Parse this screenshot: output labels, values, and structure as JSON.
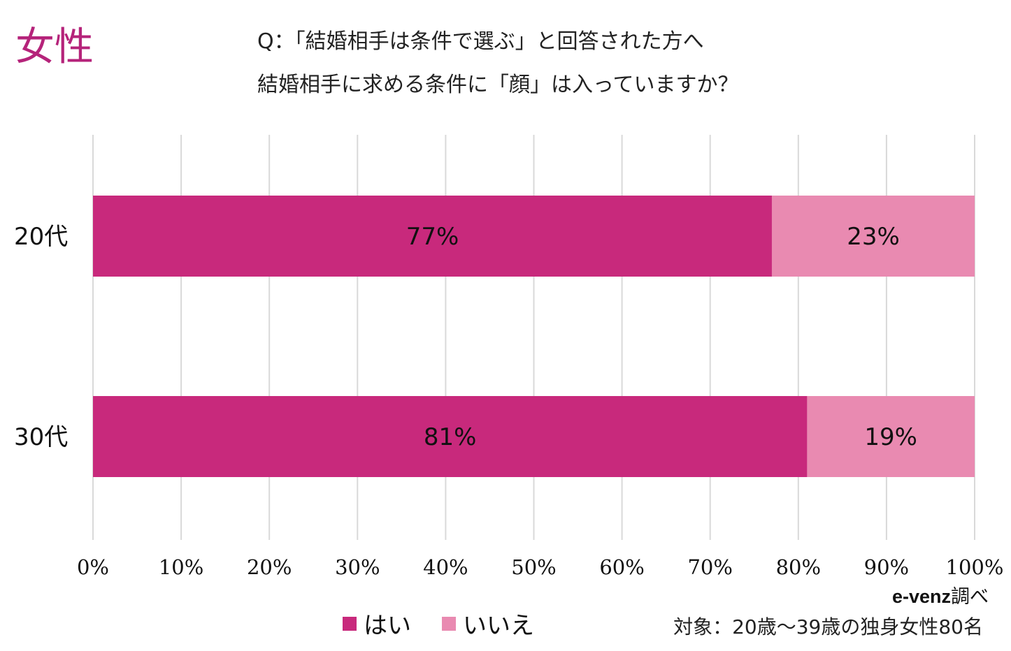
{
  "header": {
    "gender": "女性",
    "question_line1": "Q：「結婚相手は条件で選ぶ」と回答された方へ",
    "question_line2": "結婚相手に求める条件に「顔」は入っていますか？"
  },
  "chart_data": {
    "type": "bar",
    "orientation": "horizontal",
    "stacked": true,
    "categories": [
      "20代",
      "30代"
    ],
    "series": [
      {
        "name": "はい",
        "values": [
          77,
          81
        ],
        "labels": [
          "77%",
          "81%"
        ],
        "color": "#c8297c"
      },
      {
        "name": "いいえ",
        "values": [
          23,
          19
        ],
        "labels": [
          "23%",
          "19%"
        ],
        "color": "#e98ab1"
      }
    ],
    "xlim": [
      0,
      100
    ],
    "xticks": [
      {
        "value": 0,
        "label": "0%"
      },
      {
        "value": 10,
        "label": "10%"
      },
      {
        "value": 20,
        "label": "20%"
      },
      {
        "value": 30,
        "label": "30%"
      },
      {
        "value": 40,
        "label": "40%"
      },
      {
        "value": 50,
        "label": "50%"
      },
      {
        "value": 60,
        "label": "60%"
      },
      {
        "value": 70,
        "label": "70%"
      },
      {
        "value": 80,
        "label": "80%"
      },
      {
        "value": 90,
        "label": "90%"
      },
      {
        "value": 100,
        "label": "100%"
      }
    ],
    "grid": true,
    "legend_position": "bottom"
  },
  "footer": {
    "credit_brand": "e-venz",
    "credit_suffix": "調べ",
    "target": "対象：20歳〜39歳の独身女性80名"
  }
}
